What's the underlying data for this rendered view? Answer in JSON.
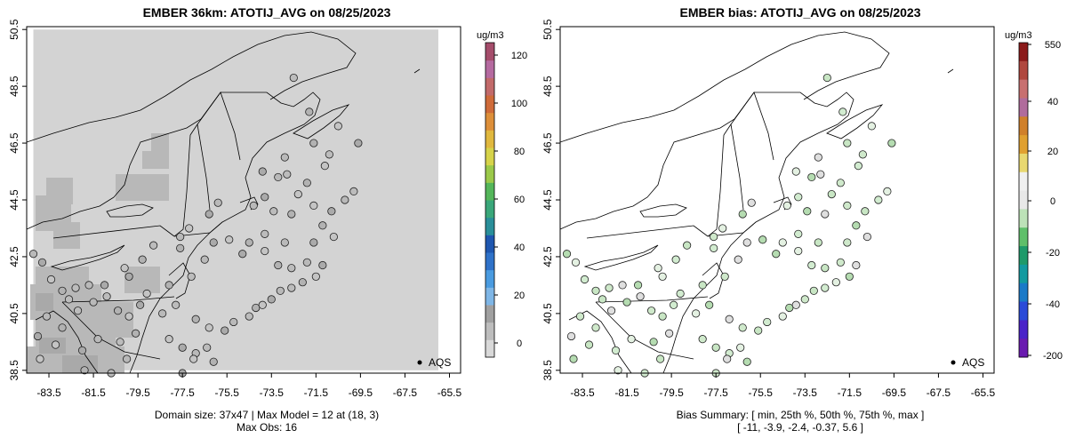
{
  "panels": [
    {
      "title": "EMBER 36km: ATOTIJ_AVG on 08/25/2023",
      "colorbar": {
        "unit": "ug/m3",
        "ticks": [
          "0",
          "20",
          "40",
          "60",
          "80",
          "100",
          "120"
        ],
        "colors": [
          "#d9d9d9",
          "#bdbdbd",
          "#a0a0a0",
          "#7fb6e6",
          "#4a9be0",
          "#2f72c9",
          "#1f57b0",
          "#2a8f9a",
          "#3aa77a",
          "#54b65a",
          "#9bc94a",
          "#d6d34a",
          "#e0b83e",
          "#dd8f3a",
          "#cf6b3a",
          "#c26a6a",
          "#b56aa0",
          "#a54d6b"
        ]
      },
      "legend_label": "AQS",
      "caption_lines": [
        "Domain size: 37x47 | Max Model = 12 at (18, 3)",
        "Max Obs: 16"
      ]
    },
    {
      "title": "EMBER bias: ATOTIJ_AVG on 08/25/2023",
      "colorbar": {
        "unit": "ug/m3",
        "ticks": [
          "550",
          "40",
          "20",
          "0",
          "-20",
          "-40",
          "-200"
        ],
        "colors": [
          "#8b1a1a",
          "#b0473e",
          "#c87070",
          "#b06c9c",
          "#d0802a",
          "#e0a030",
          "#e8d870",
          "#f0f0f0",
          "#e8e8e8",
          "#bde2b8",
          "#5fbf6a",
          "#1f9a6a",
          "#139aa0",
          "#1a7ac8",
          "#2a4ad8",
          "#4a22c8",
          "#6a1ab0"
        ]
      },
      "legend_label": "AQS",
      "caption_lines": [
        "Bias Summary: [ min, 25th %, 50th %, 75th %, max ]",
        "[ -11,   -3.9,   -2.4,   -0.37,   5.6 ]"
      ]
    }
  ],
  "axes": {
    "x_ticks": [
      -83.5,
      -81.5,
      -79.5,
      -77.5,
      -75.5,
      -73.5,
      -71.5,
      -69.5,
      -67.5,
      -65.5
    ],
    "y_ticks": [
      38.5,
      40.5,
      42.5,
      44.5,
      46.5,
      48.5,
      50.5
    ],
    "xlim": [
      -84.5,
      -65
    ],
    "ylim": [
      38.4,
      50.6
    ]
  }
}
